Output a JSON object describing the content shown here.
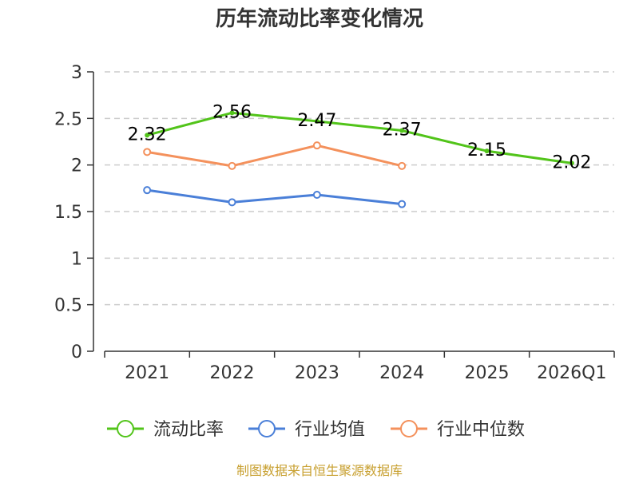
{
  "chart_data": {
    "type": "line",
    "title": "历年流动比率变化情况",
    "categories": [
      "2021",
      "2022",
      "2023",
      "2024",
      "2025",
      "2026Q1"
    ],
    "ylim": [
      0,
      3
    ],
    "yticks": [
      "0",
      "0.5",
      "1",
      "1.5",
      "2",
      "2.5",
      "3"
    ],
    "ytick_values": [
      0,
      0.5,
      1,
      1.5,
      2,
      2.5,
      3
    ],
    "grid": true,
    "legend_position": "bottom",
    "series": [
      {
        "name": "流动比率",
        "color": "#52c41a",
        "values": [
          2.32,
          2.56,
          2.47,
          2.37,
          2.15,
          2.02
        ],
        "labels": [
          "2.32",
          "2.56",
          "2.47",
          "2.37",
          "2.15",
          "2.02"
        ]
      },
      {
        "name": "行业均值",
        "color": "#4a7fd8",
        "values": [
          1.73,
          1.6,
          1.68,
          1.58,
          null,
          null
        ]
      },
      {
        "name": "行业中位数",
        "color": "#f4915c",
        "values": [
          2.14,
          1.99,
          2.21,
          1.99,
          null,
          null
        ]
      }
    ]
  },
  "source": {
    "text": "制图数据来自恒生聚源数据库",
    "color": "#c8a030"
  }
}
